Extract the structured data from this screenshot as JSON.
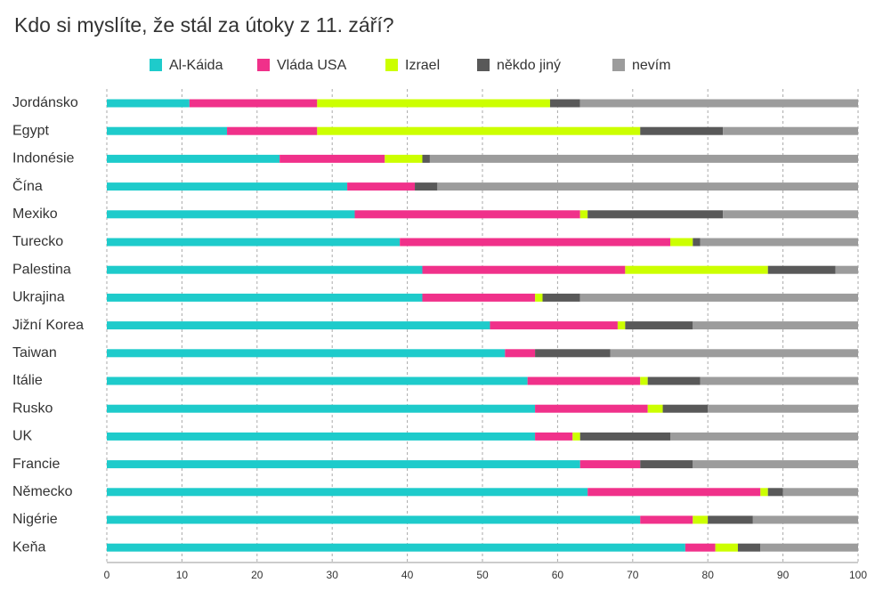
{
  "chart_data": {
    "type": "stacked-bar-horizontal",
    "title": "Kdo si myslíte, že stál za útoky z 11. září?",
    "categories": [
      "Jordánsko",
      "Egypt",
      "Indonésie",
      "Čína",
      "Mexiko",
      "Turecko",
      "Palestina",
      "Ukrajina",
      "Jižní Korea",
      "Taiwan",
      "Itálie",
      "Rusko",
      "UK",
      "Francie",
      "Německo",
      "Nigérie",
      "Keňa"
    ],
    "series": [
      {
        "name": "Al-Káida",
        "color": "#1ecbcb",
        "values": [
          11,
          16,
          23,
          32,
          33,
          39,
          42,
          42,
          51,
          53,
          56,
          57,
          57,
          63,
          64,
          71,
          77
        ]
      },
      {
        "name": "Vláda USA",
        "color": "#f0318a",
        "values": [
          17,
          12,
          14,
          9,
          30,
          36,
          27,
          15,
          17,
          4,
          15,
          15,
          5,
          8,
          23,
          7,
          4
        ]
      },
      {
        "name": "Izrael",
        "color": "#ccff00",
        "values": [
          31,
          43,
          5,
          0,
          1,
          3,
          19,
          1,
          1,
          0,
          1,
          2,
          1,
          0,
          1,
          2,
          3
        ]
      },
      {
        "name": "někdo jiný",
        "color": "#595959",
        "values": [
          4,
          11,
          1,
          3,
          18,
          1,
          9,
          5,
          9,
          10,
          7,
          6,
          12,
          7,
          2,
          6,
          3
        ]
      },
      {
        "name": "nevím",
        "color": "#9c9c9c",
        "values": [
          37,
          18,
          57,
          56,
          18,
          21,
          3,
          37,
          22,
          33,
          21,
          20,
          25,
          22,
          10,
          14,
          13
        ]
      }
    ],
    "xlim": [
      0,
      100
    ],
    "xticks": [
      0,
      10,
      20,
      30,
      40,
      50,
      60,
      70,
      80,
      90,
      100
    ],
    "grid": true
  }
}
